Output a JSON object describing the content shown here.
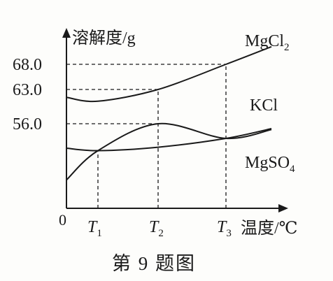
{
  "chart_data": {
    "type": "line",
    "ylabel": "溶解度/g",
    "xlabel": "温度/℃",
    "origin_label": "0",
    "caption": "第 9 题图",
    "x_ticks": [
      "T1",
      "T2",
      "T3"
    ],
    "y_ticks": [
      56.0,
      63.0,
      68.0
    ],
    "y_tick_labels": [
      "56.0",
      "63.0",
      "68.0"
    ],
    "series": [
      {
        "name": "MgCl2",
        "x": [
          "0",
          "T1",
          "T2",
          "T3",
          "end"
        ],
        "values": [
          61.4,
          60.6,
          63.0,
          68.0,
          71.5
        ]
      },
      {
        "name": "KCl",
        "x": [
          "0",
          "T1",
          "T2",
          "T3",
          "end"
        ],
        "values": [
          44.5,
          50.5,
          56.0,
          53.0,
          54.8
        ]
      },
      {
        "name": "MgSO4",
        "x": [
          "0",
          "T1",
          "T2",
          "T3",
          "end"
        ],
        "values": [
          51.0,
          50.5,
          51.2,
          53.0,
          55.0
        ]
      }
    ],
    "grid": false,
    "legend": "labels next to curves"
  }
}
